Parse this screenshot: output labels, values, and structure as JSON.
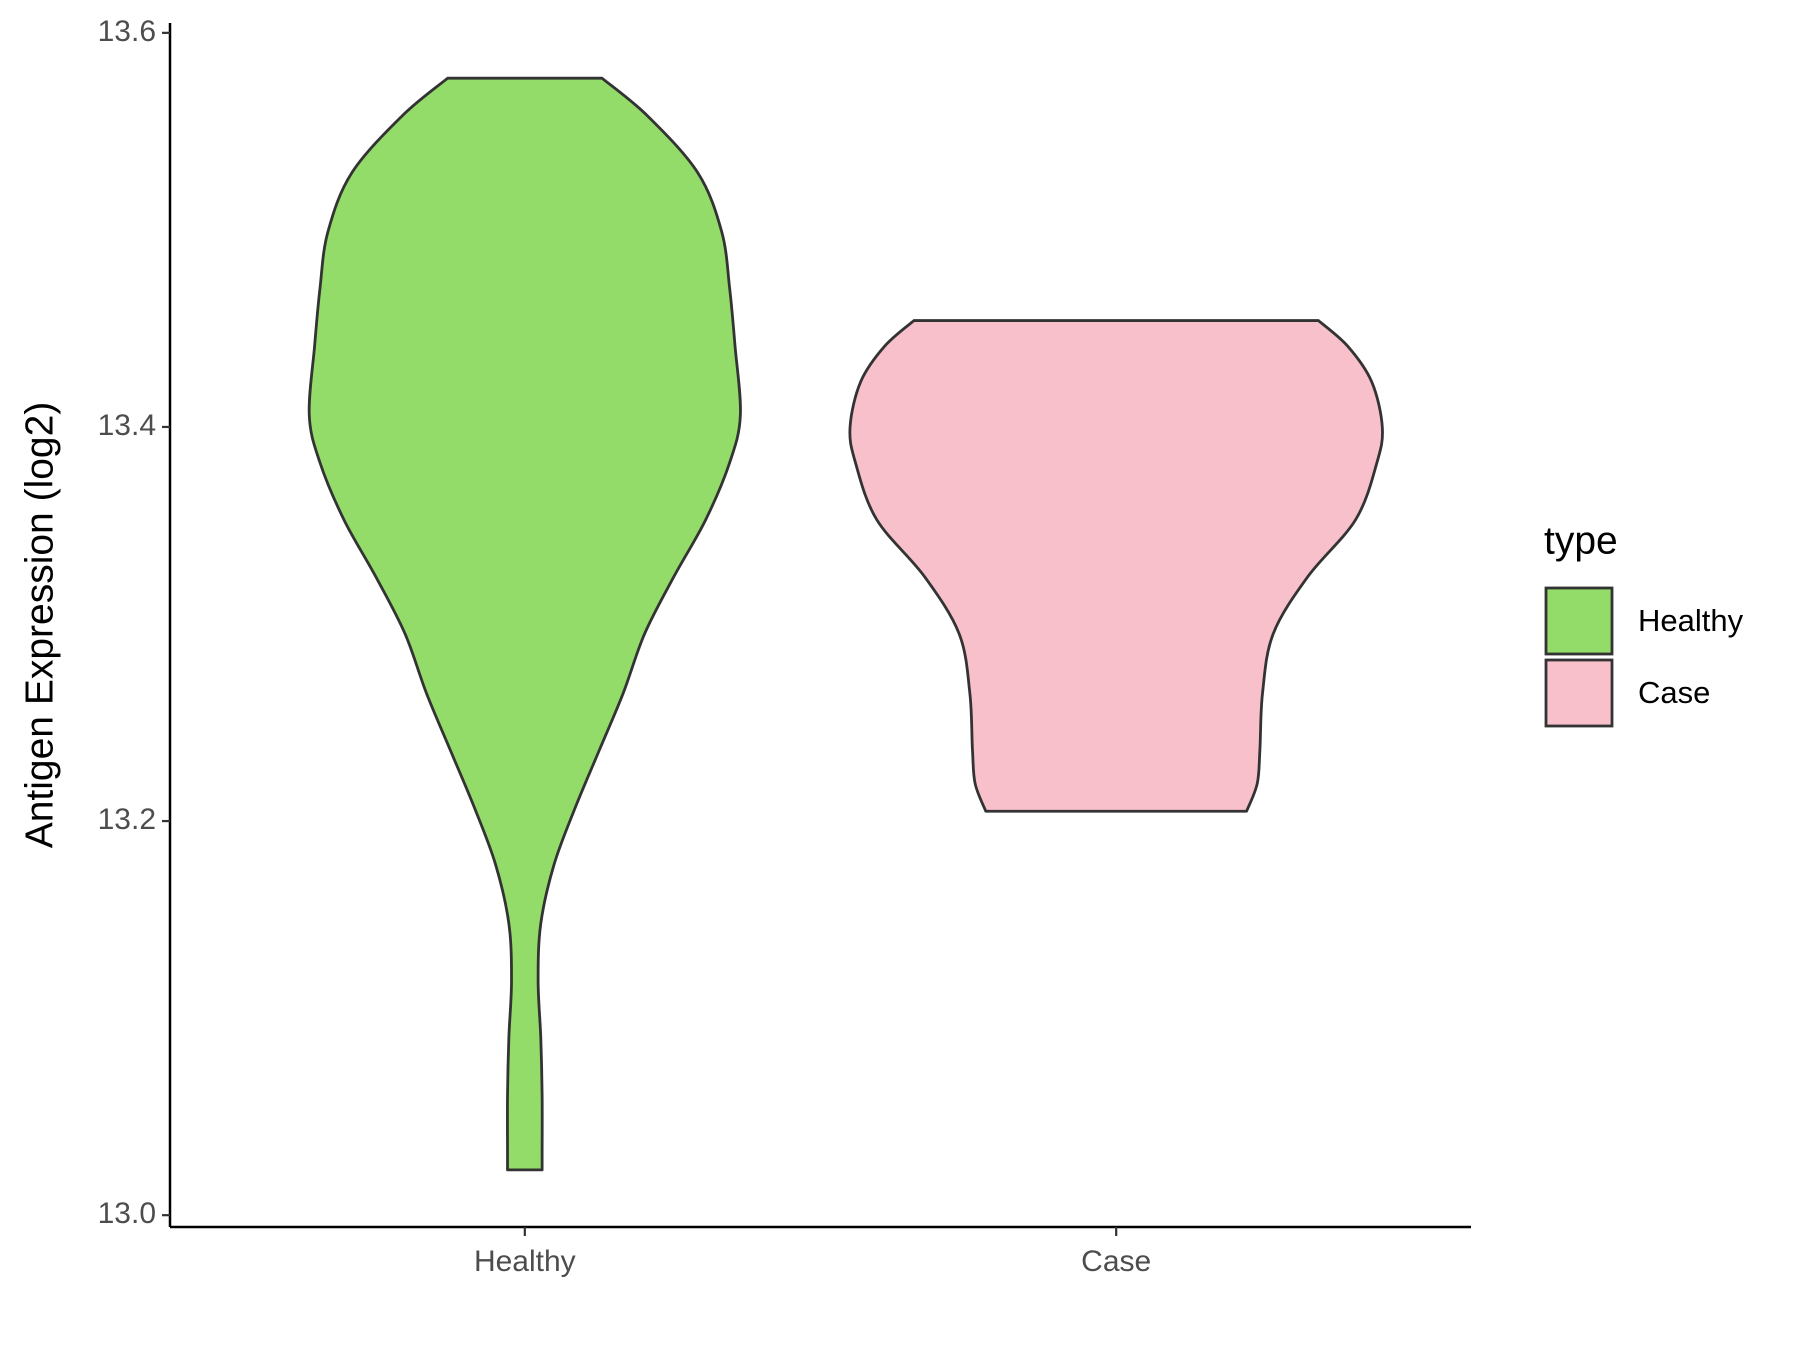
{
  "chart_data": {
    "type": "violin",
    "y_label": "Antigen Expression (log2)",
    "categories": [
      "Healthy",
      "Case"
    ],
    "ylim": [
      12.994,
      13.605
    ],
    "yticks": [
      {
        "value": 13,
        "label": "13.0"
      },
      13.2,
      13.4,
      13.6
    ],
    "legend_title": "type",
    "legend": "right",
    "series": [
      {
        "name": "Healthy",
        "color": "#93dc6a",
        "y": [
          13.023,
          13.031,
          13.061,
          13.09,
          13.119,
          13.148,
          13.178,
          13.207,
          13.236,
          13.265,
          13.295,
          13.324,
          13.353,
          13.382,
          13.406,
          13.441,
          13.47,
          13.499,
          13.529,
          13.558,
          13.577
        ],
        "width": [
          0.065,
          0.065,
          0.065,
          0.06,
          0.05,
          0.06,
          0.11,
          0.19,
          0.28,
          0.37,
          0.45,
          0.56,
          0.68,
          0.77,
          0.81,
          0.79,
          0.77,
          0.74,
          0.65,
          0.46,
          0.29
        ]
      },
      {
        "name": "Case",
        "color": "#f8c0cb",
        "y": [
          13.205,
          13.219,
          13.236,
          13.265,
          13.295,
          13.324,
          13.353,
          13.382,
          13.4,
          13.423,
          13.441,
          13.454
        ],
        "width": [
          0.49,
          0.53,
          0.54,
          0.55,
          0.59,
          0.72,
          0.9,
          0.98,
          1.0,
          0.96,
          0.87,
          0.76
        ]
      }
    ]
  }
}
